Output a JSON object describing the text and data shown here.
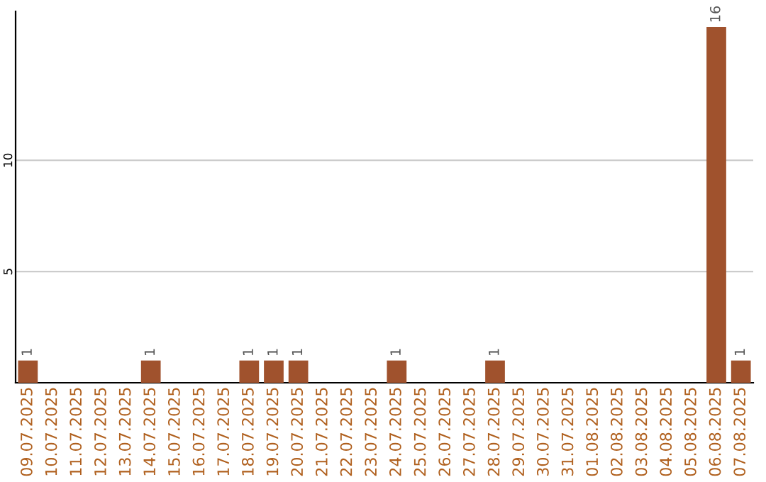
{
  "chart_data": {
    "type": "bar",
    "categories": [
      "09.07.2025",
      "10.07.2025",
      "11.07.2025",
      "12.07.2025",
      "13.07.2025",
      "14.07.2025",
      "15.07.2025",
      "16.07.2025",
      "17.07.2025",
      "18.07.2025",
      "19.07.2025",
      "20.07.2025",
      "21.07.2025",
      "22.07.2025",
      "23.07.2025",
      "24.07.2025",
      "25.07.2025",
      "26.07.2025",
      "27.07.2025",
      "28.07.2025",
      "29.07.2025",
      "30.07.2025",
      "31.07.2025",
      "01.08.2025",
      "02.08.2025",
      "03.08.2025",
      "04.08.2025",
      "05.08.2025",
      "06.08.2025",
      "07.08.2025"
    ],
    "values": [
      1,
      0,
      0,
      0,
      0,
      1,
      0,
      0,
      0,
      1,
      1,
      1,
      0,
      0,
      0,
      1,
      0,
      0,
      0,
      1,
      0,
      0,
      0,
      0,
      0,
      0,
      0,
      0,
      16,
      1
    ],
    "value_labels": [
      "1",
      null,
      null,
      null,
      null,
      "1",
      null,
      null,
      null,
      "1",
      "1",
      "1",
      null,
      null,
      null,
      "1",
      null,
      null,
      null,
      "1",
      null,
      null,
      null,
      null,
      null,
      null,
      null,
      null,
      "16",
      "1"
    ],
    "color": "#a0522d",
    "ylim": [
      0,
      16.7
    ],
    "yticks": [
      5,
      10
    ],
    "grid": "y"
  }
}
